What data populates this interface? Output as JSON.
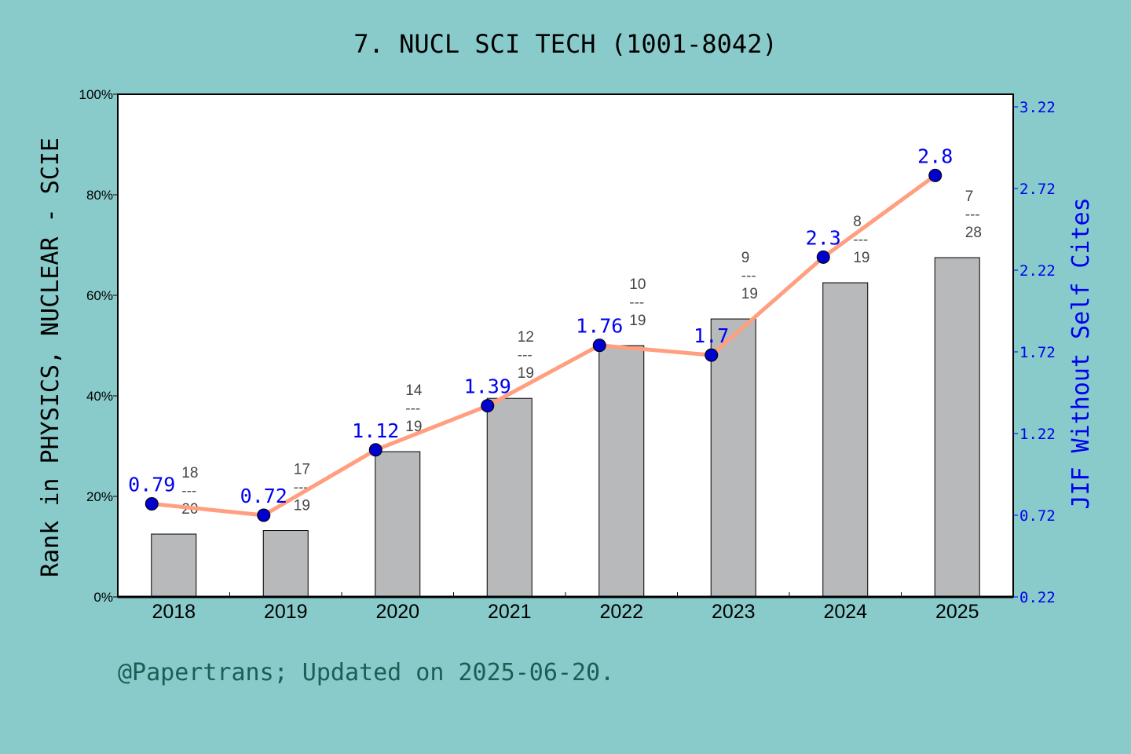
{
  "chart_data": {
    "type": "bar+line",
    "title": "7. NUCL SCI TECH (1001-8042)",
    "categories": [
      "2018",
      "2019",
      "2020",
      "2021",
      "2022",
      "2023",
      "2024",
      "2025"
    ],
    "ylabel": "Rank in PHYSICS, NUCLEAR - SCIE",
    "y2label": "JIF Without Self Cites",
    "ylim": [
      0,
      100
    ],
    "yticks": [
      "0%",
      "20%",
      "40%",
      "60%",
      "80%",
      "100%"
    ],
    "y2lim": [
      0.22,
      3.22
    ],
    "y2ticks": [
      "0.22",
      "0.72",
      "1.22",
      "1.72",
      "2.22",
      "2.72",
      "3.22"
    ],
    "bars": {
      "values": [
        12.5,
        13.2,
        28.9,
        39.5,
        50.0,
        55.3,
        62.5,
        67.5
      ],
      "rank_labels": [
        {
          "rank": "18",
          "total": "20"
        },
        {
          "rank": "17",
          "total": "19"
        },
        {
          "rank": "14",
          "total": "19"
        },
        {
          "rank": "12",
          "total": "19"
        },
        {
          "rank": "10",
          "total": "19"
        },
        {
          "rank": "9",
          "total": "19"
        },
        {
          "rank": "8",
          "total": "19"
        },
        {
          "rank": "7",
          "total": "28"
        }
      ],
      "fraction_bar": "---",
      "color": "#b8b9bb"
    },
    "line": {
      "values": [
        0.79,
        0.72,
        1.12,
        1.39,
        1.76,
        1.7,
        2.3,
        2.8
      ],
      "labels": [
        "0.79",
        "0.72",
        "1.12",
        "1.39",
        "1.76",
        "1.7",
        "2.3",
        "2.8"
      ],
      "line_color": "#ff9f7f",
      "marker_color": "#0000cc",
      "label_color": "#0000ee"
    },
    "grid": false
  },
  "footer": "@Papertrans; Updated on 2025-06-20."
}
